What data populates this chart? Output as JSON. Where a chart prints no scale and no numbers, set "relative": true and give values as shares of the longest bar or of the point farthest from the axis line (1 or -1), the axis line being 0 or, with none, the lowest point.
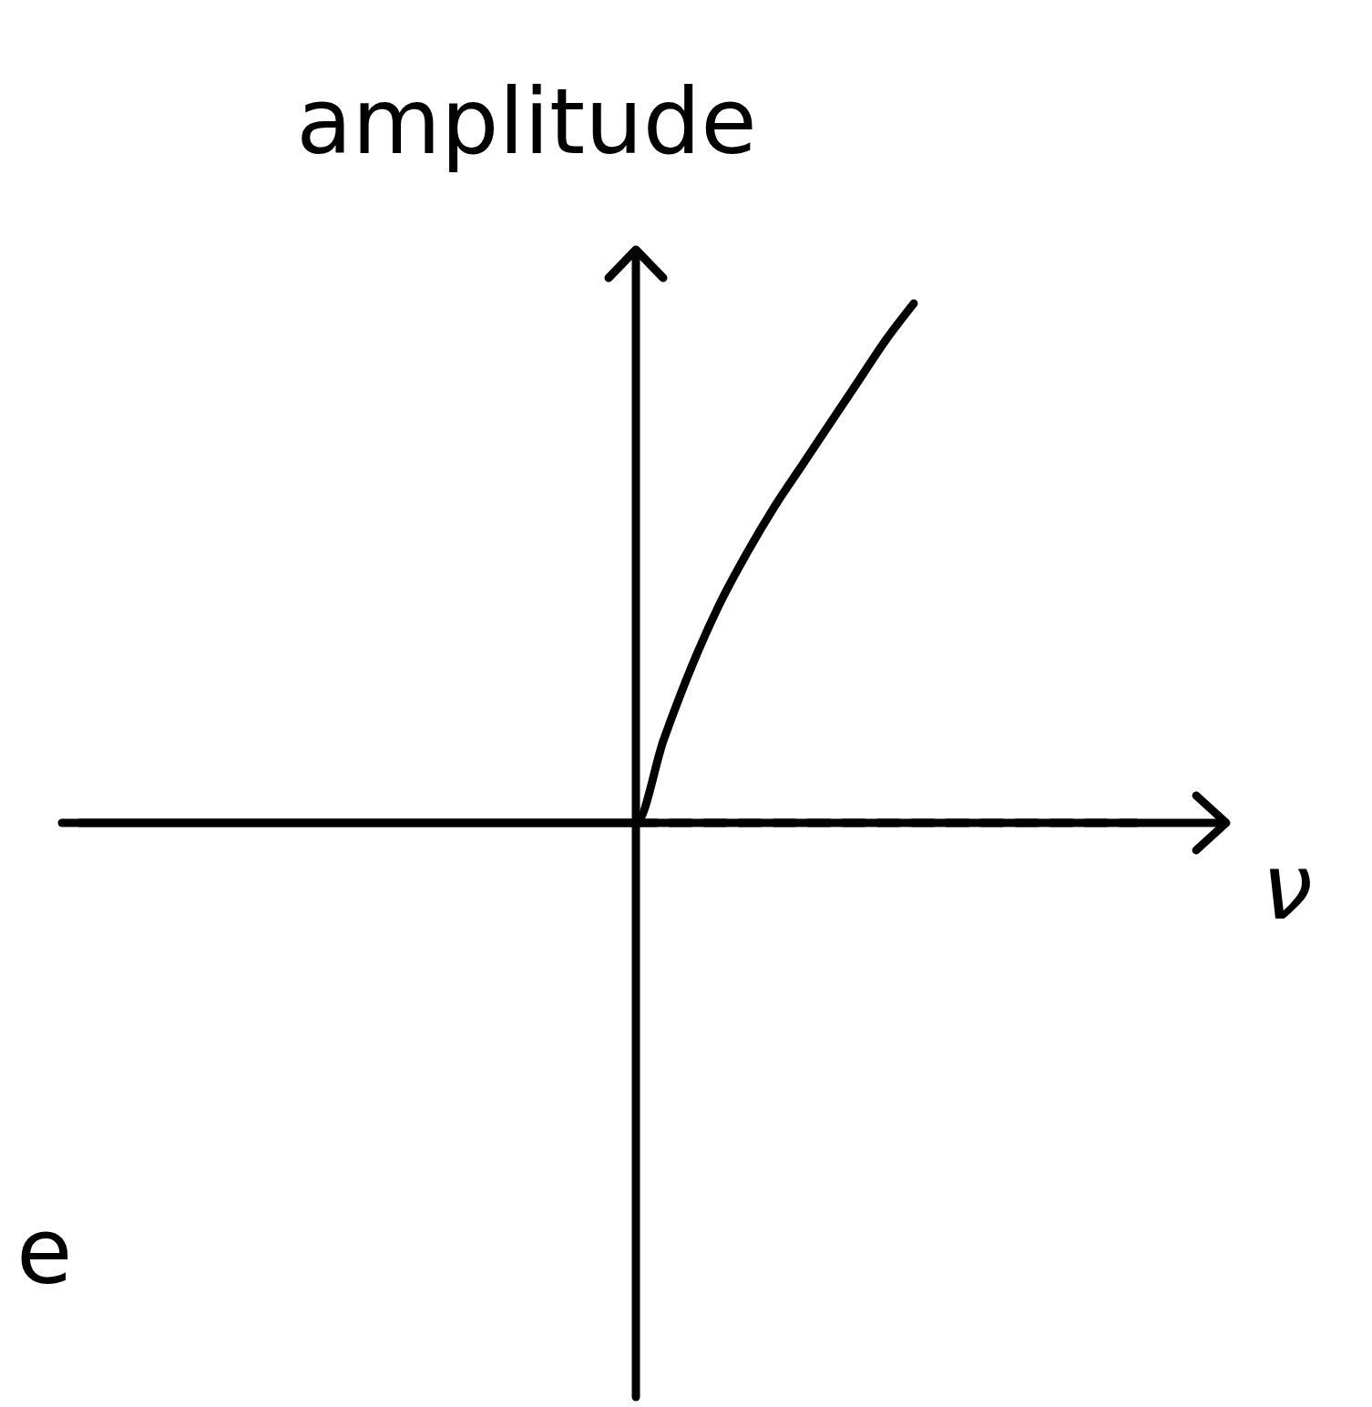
{
  "chart_data": {
    "type": "line",
    "relative": true,
    "ylabel": "amplitude",
    "xlabel": "ν",
    "annotations": [
      "e"
    ],
    "categories": [
      null,
      null,
      null,
      null,
      null,
      null,
      null,
      null,
      null,
      null,
      null,
      null,
      null,
      null,
      null,
      null,
      null,
      null,
      null,
      null,
      null,
      null,
      null,
      null,
      null,
      null,
      null,
      null,
      null,
      null,
      null,
      null,
      null,
      null,
      null,
      null,
      null,
      null,
      null
    ],
    "series": [
      {
        "color": "#000000",
        "line_style": "solid",
        "values": [
          0,
          0,
          0,
          0,
          0,
          0,
          0,
          0,
          0,
          0,
          0,
          0,
          0,
          0,
          0,
          0,
          0,
          0,
          0,
          0,
          0,
          0.16,
          0.3,
          0.42,
          0.52,
          0.61,
          0.69,
          0.77,
          0.85,
          0.93,
          1,
          null,
          null,
          null,
          null,
          null,
          null,
          null,
          null
        ]
      },
      {
        "color": "#000000",
        "line_style": "dashed",
        "values": [
          null,
          null,
          null,
          null,
          null,
          null,
          null,
          null,
          null,
          null,
          null,
          null,
          null,
          null,
          null,
          null,
          null,
          null,
          null,
          null,
          0,
          0,
          0,
          0,
          0,
          0,
          0,
          0,
          0,
          0,
          0,
          0,
          0,
          0,
          0,
          0,
          0,
          0,
          0
        ]
      }
    ]
  }
}
